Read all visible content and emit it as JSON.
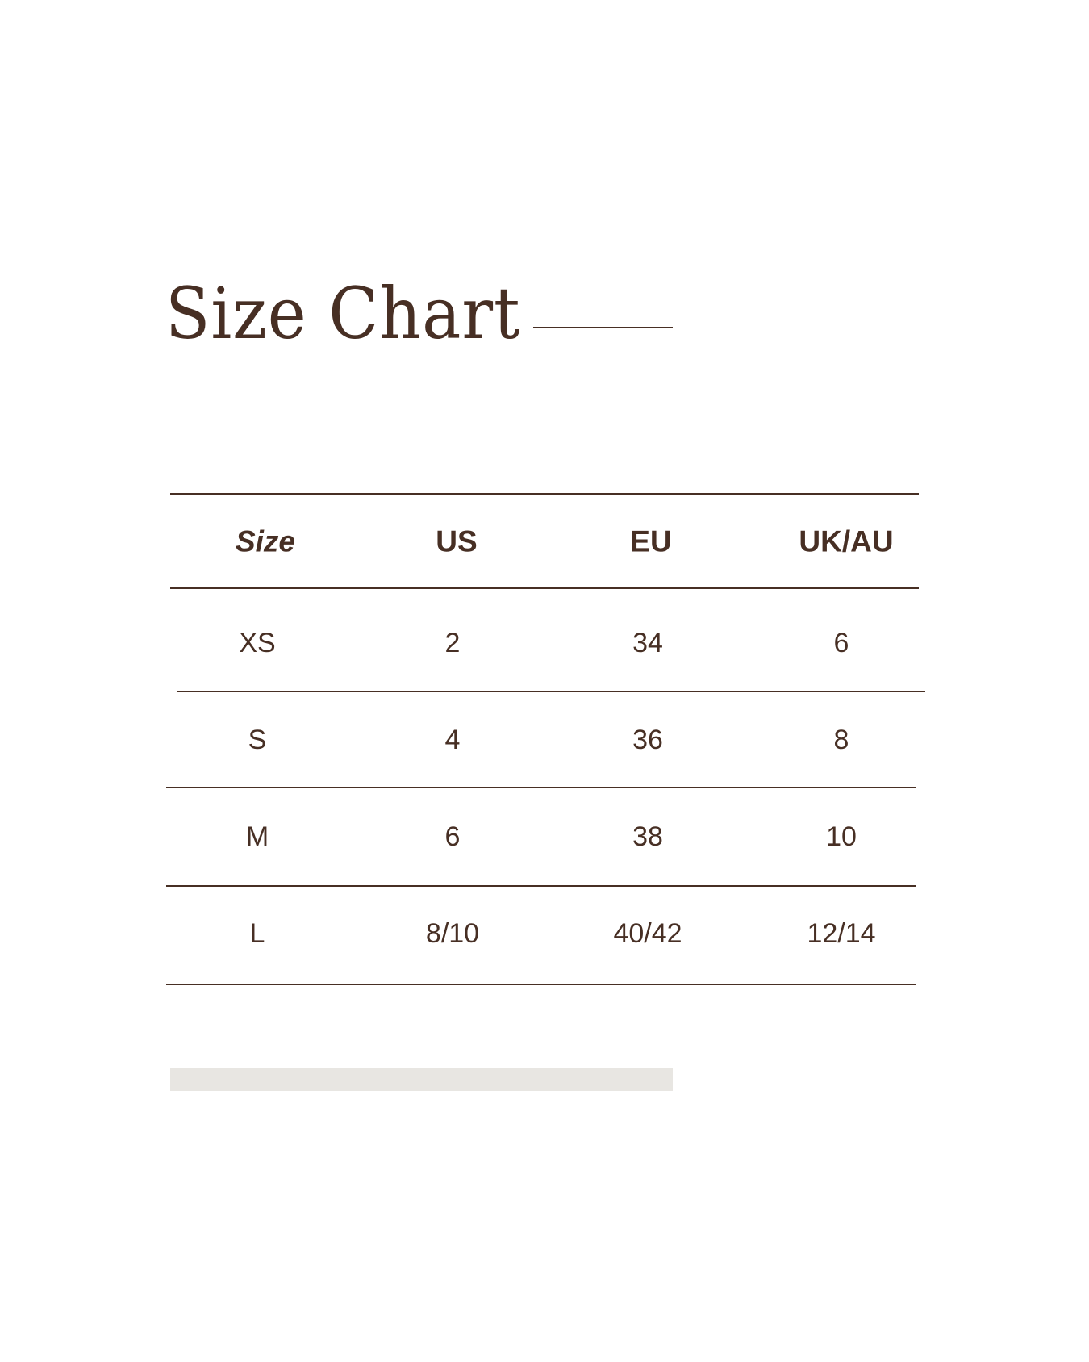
{
  "title": "Size Chart",
  "colors": {
    "text": "#472f24",
    "bar": "#e8e6e2",
    "background": "#ffffff"
  },
  "table": {
    "headers": [
      "Size",
      "US",
      "EU",
      "UK/AU"
    ],
    "rows": [
      [
        "XS",
        "2",
        "34",
        "6"
      ],
      [
        "S",
        "4",
        "36",
        "8"
      ],
      [
        "M",
        "6",
        "38",
        "10"
      ],
      [
        "L",
        "8/10",
        "40/42",
        "12/14"
      ]
    ]
  }
}
